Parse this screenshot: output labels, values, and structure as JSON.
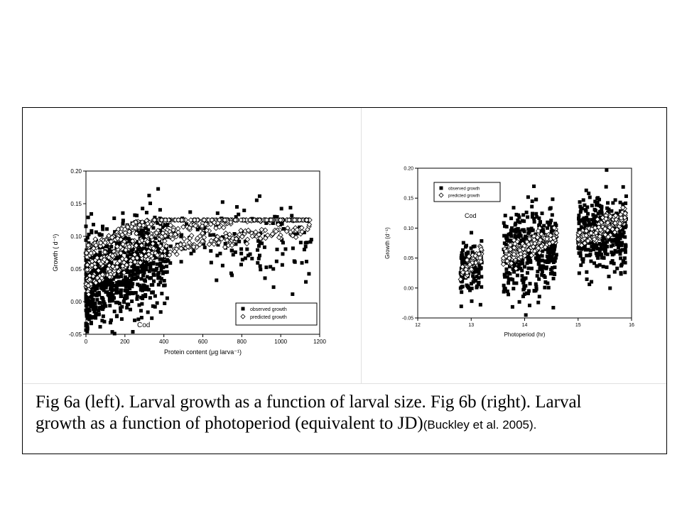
{
  "caption": {
    "line1": "Fig 6a (left). Larval growth as a function of larval size. Fig 6b (right). Larval",
    "line2": "growth as a function of photoperiod (equivalent to JD)",
    "citation": "(Buckley et al. 2005)."
  },
  "chart_data": [
    {
      "id": "fig6a",
      "type": "scatter",
      "annotation": "Cod",
      "xlabel": "Protein content (μg larva⁻¹)",
      "ylabel": "Growth ( d⁻¹)",
      "xlim": [
        0,
        1200
      ],
      "ylim": [
        -0.05,
        0.2
      ],
      "xticks": [
        "0",
        "200",
        "400",
        "600",
        "800",
        "1000",
        "1200"
      ],
      "yticks": [
        "-0.05",
        "0.00",
        "0.05",
        "0.10",
        "0.15",
        "0.20"
      ],
      "legend_position": "bottom-right",
      "series": [
        {
          "name": "observed growth",
          "marker": "filled-square"
        },
        {
          "name": "predicted growth",
          "marker": "open-diamond"
        }
      ]
    },
    {
      "id": "fig6b",
      "type": "scatter",
      "annotation": "Cod",
      "xlabel": "Photoperiod (hr)",
      "ylabel": "Growth (d⁻¹)",
      "xlim": [
        12,
        16
      ],
      "ylim": [
        -0.05,
        0.2
      ],
      "xticks": [
        "12",
        "13",
        "14",
        "15",
        "16"
      ],
      "yticks": [
        "-0.05",
        "0.00",
        "0.05",
        "0.10",
        "0.15",
        "0.20"
      ],
      "legend_position": "top-left",
      "series": [
        {
          "name": "observed growth",
          "marker": "filled-square"
        },
        {
          "name": "predicted growth",
          "marker": "open-diamond"
        }
      ]
    }
  ]
}
